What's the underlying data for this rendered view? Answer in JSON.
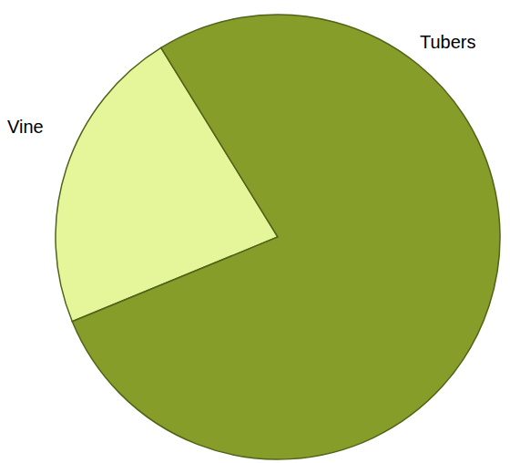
{
  "chart_data": {
    "type": "pie",
    "categories": [
      "Vine",
      "Tubers"
    ],
    "values": [
      22.4,
      77.6
    ],
    "colors": [
      "#e5f59a",
      "#879d2a"
    ]
  }
}
